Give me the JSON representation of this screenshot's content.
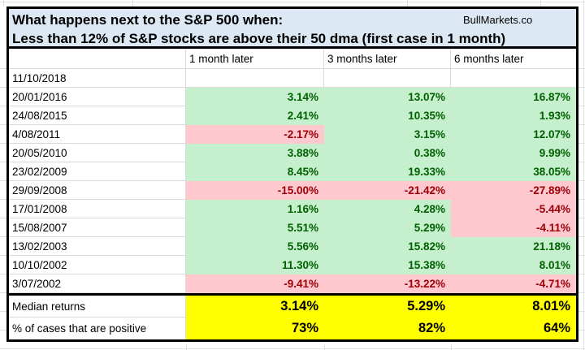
{
  "header": {
    "title_line1": "What happens next to the S&P 500 when:",
    "title_line2": "Less than 12% of S&P stocks are above their 50 dma (first case in 1 month)",
    "brand": "BullMarkets.co"
  },
  "table": {
    "corner_label": "",
    "columns": [
      "1 month later",
      "3 months later",
      "6 months later"
    ],
    "rows": [
      {
        "date": "11/10/2018",
        "values": [
          "",
          "",
          ""
        ]
      },
      {
        "date": "20/01/2016",
        "values": [
          "3.14%",
          "13.07%",
          "16.87%"
        ]
      },
      {
        "date": "24/08/2015",
        "values": [
          "2.41%",
          "10.35%",
          "1.93%"
        ]
      },
      {
        "date": "4/08/2011",
        "values": [
          "-2.17%",
          "3.15%",
          "12.07%"
        ]
      },
      {
        "date": "20/05/2010",
        "values": [
          "3.88%",
          "0.38%",
          "9.99%"
        ]
      },
      {
        "date": "23/02/2009",
        "values": [
          "8.45%",
          "19.33%",
          "38.05%"
        ]
      },
      {
        "date": "29/09/2008",
        "values": [
          "-15.00%",
          "-21.42%",
          "-27.89%"
        ]
      },
      {
        "date": "17/01/2008",
        "values": [
          "1.16%",
          "4.28%",
          "-5.44%"
        ]
      },
      {
        "date": "15/08/2007",
        "values": [
          "5.51%",
          "5.29%",
          "-4.11%"
        ]
      },
      {
        "date": "13/02/2003",
        "values": [
          "5.56%",
          "15.82%",
          "21.18%"
        ]
      },
      {
        "date": "10/10/2002",
        "values": [
          "11.30%",
          "15.38%",
          "8.01%"
        ]
      },
      {
        "date": "3/07/2002",
        "values": [
          "-9.41%",
          "-13.22%",
          "-4.71%"
        ]
      }
    ],
    "footer": [
      {
        "label": "Median returns",
        "values": [
          "3.14%",
          "5.29%",
          "8.01%"
        ]
      },
      {
        "label": "% of cases that are positive",
        "values": [
          "73%",
          "82%",
          "64%"
        ]
      }
    ]
  },
  "colors": {
    "title_bg": "#dce9f5",
    "positive_bg": "#c6efce",
    "positive_text": "#006100",
    "negative_bg": "#ffc7ce",
    "negative_text": "#9c0006",
    "highlight_bg": "#ffff00",
    "border": "#000000",
    "gridline": "#d9d9d9"
  }
}
